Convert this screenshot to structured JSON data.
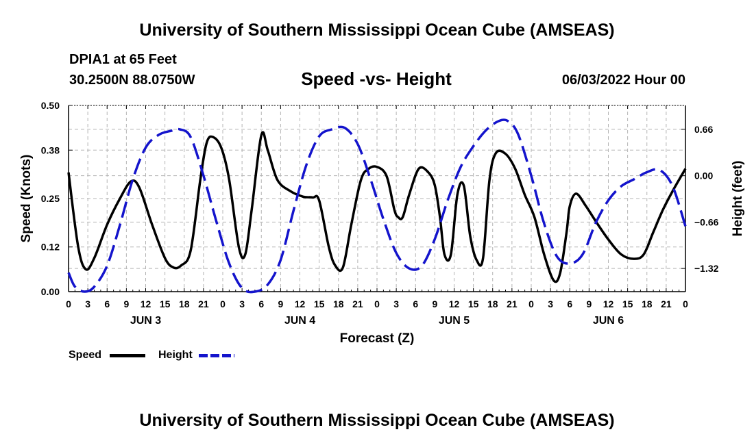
{
  "page": {
    "title_top": "University of Southern Mississippi Ocean Cube (AMSEAS)",
    "title_bottom": "University of Southern Mississippi Ocean Cube (AMSEAS)",
    "station": "DPIA1 at 65 Feet",
    "coords": "30.2500N  88.0750W",
    "datetime": "06/03/2022 Hour 00"
  },
  "chart_data": {
    "type": "line",
    "title": "Speed -vs- Height",
    "xlabel": "Forecast (Z)",
    "ylabel_left": "Speed (Knots)",
    "ylabel_right": "Height (feet)",
    "x_range_hours": [
      0,
      96
    ],
    "x_tick_hours": [
      0,
      3,
      6,
      9,
      12,
      15,
      18,
      21,
      24,
      27,
      30,
      33,
      36,
      39,
      42,
      45,
      48,
      51,
      54,
      57,
      60,
      63,
      66,
      69,
      72,
      75,
      78,
      81,
      84,
      87,
      90,
      93,
      96
    ],
    "x_tick_labels": [
      "0",
      "3",
      "6",
      "9",
      "12",
      "15",
      "18",
      "21",
      "0",
      "3",
      "6",
      "9",
      "12",
      "15",
      "18",
      "21",
      "0",
      "3",
      "6",
      "9",
      "12",
      "15",
      "18",
      "21",
      "0",
      "3",
      "6",
      "9",
      "12",
      "15",
      "18",
      "21",
      "0"
    ],
    "day_labels": [
      {
        "hour": 12,
        "label": "JUN 3"
      },
      {
        "hour": 36,
        "label": "JUN 4"
      },
      {
        "hour": 60,
        "label": "JUN 5"
      },
      {
        "hour": 84,
        "label": "JUN 6"
      }
    ],
    "ylim_left": [
      0,
      0.5
    ],
    "y_ticks_left": [
      0.0,
      0.12,
      0.25,
      0.38,
      0.5
    ],
    "y_tick_labels_left": [
      "0.00",
      "0.12",
      "0.25",
      "0.38",
      "0.50"
    ],
    "ylim_right": [
      -1.65,
      1.0
    ],
    "y_ticks_right": [
      -1.32,
      -0.66,
      0.0,
      0.66
    ],
    "y_tick_labels_right": [
      "−1.32",
      "−0.66",
      "0.00",
      "0.66"
    ],
    "grid": true,
    "series": [
      {
        "name": "Speed",
        "axis": "left",
        "color": "#000000",
        "dash": "solid",
        "x": [
          0,
          1.5,
          2.7,
          4,
          6,
          8,
          9.7,
          11,
          13,
          15,
          16.3,
          17.5,
          19,
          20.5,
          21.5,
          22.5,
          23.8,
          25,
          26.5,
          27.5,
          28.5,
          30,
          31,
          32.5,
          34.5,
          36.5,
          38,
          39,
          40.5,
          41.5,
          42.7,
          44,
          45.5,
          46.7,
          48,
          49.5,
          50.7,
          51.3,
          52,
          53,
          54.5,
          56,
          57,
          57.8,
          58.5,
          59.5,
          60.5,
          61.5,
          62.5,
          63.5,
          64.5,
          65.5,
          66.5,
          68,
          69.5,
          71,
          72.5,
          74,
          75.5,
          76.5,
          77.5,
          78,
          79,
          80.5,
          82,
          84,
          86,
          88,
          89.5,
          91,
          92.5,
          94,
          96
        ],
        "y": [
          0.32,
          0.12,
          0.06,
          0.09,
          0.18,
          0.25,
          0.296,
          0.28,
          0.18,
          0.09,
          0.065,
          0.07,
          0.11,
          0.3,
          0.4,
          0.415,
          0.385,
          0.3,
          0.12,
          0.1,
          0.22,
          0.42,
          0.38,
          0.3,
          0.27,
          0.255,
          0.253,
          0.245,
          0.12,
          0.07,
          0.065,
          0.18,
          0.3,
          0.33,
          0.335,
          0.31,
          0.22,
          0.2,
          0.2,
          0.26,
          0.33,
          0.32,
          0.285,
          0.2,
          0.1,
          0.1,
          0.26,
          0.285,
          0.15,
          0.085,
          0.09,
          0.3,
          0.372,
          0.37,
          0.33,
          0.26,
          0.2,
          0.1,
          0.03,
          0.05,
          0.16,
          0.23,
          0.263,
          0.23,
          0.19,
          0.14,
          0.1,
          0.088,
          0.1,
          0.16,
          0.22,
          0.27,
          0.33
        ]
      },
      {
        "name": "Height",
        "axis": "right",
        "color": "#1414cc",
        "dash": "dashed",
        "x": [
          0,
          1,
          2.5,
          4,
          6,
          8,
          10,
          12,
          14,
          16,
          17.3,
          19,
          21,
          23,
          25,
          27,
          29,
          31,
          33,
          35,
          37,
          39,
          41,
          43,
          45,
          47,
          49,
          51,
          53,
          55,
          57,
          59,
          61,
          63,
          65,
          67,
          68.5,
          70,
          72,
          74,
          76,
          78,
          80,
          82,
          84,
          86,
          88,
          90,
          92,
          94,
          96
        ],
        "y": [
          -1.38,
          -1.58,
          -1.65,
          -1.58,
          -1.28,
          -0.7,
          -0.05,
          0.4,
          0.58,
          0.64,
          0.66,
          0.55,
          0.0,
          -0.65,
          -1.25,
          -1.6,
          -1.65,
          -1.55,
          -1.2,
          -0.5,
          0.15,
          0.56,
          0.66,
          0.68,
          0.45,
          -0.05,
          -0.62,
          -1.1,
          -1.32,
          -1.28,
          -0.9,
          -0.35,
          0.12,
          0.42,
          0.65,
          0.78,
          0.77,
          0.58,
          0.0,
          -0.68,
          -1.15,
          -1.25,
          -1.12,
          -0.68,
          -0.35,
          -0.15,
          -0.05,
          0.05,
          0.08,
          -0.15,
          -0.72
        ]
      }
    ],
    "legend": [
      {
        "label": "Speed",
        "color": "#000000"
      },
      {
        "label": "Height",
        "color": "#1414cc"
      }
    ]
  }
}
